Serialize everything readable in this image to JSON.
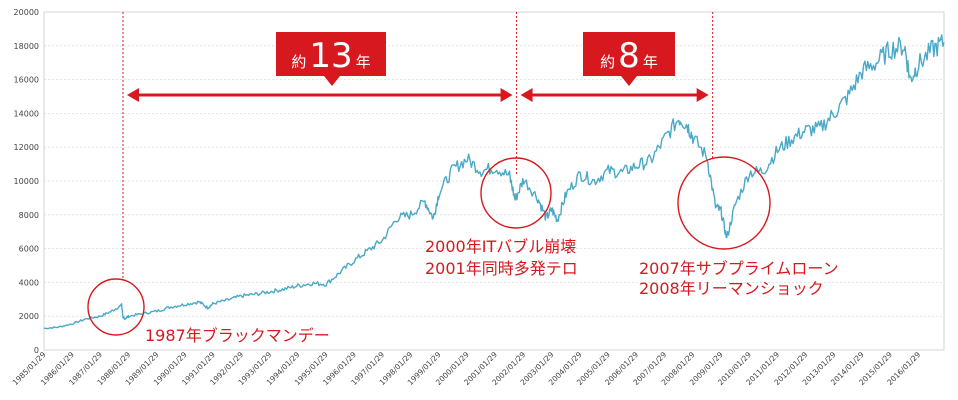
{
  "chart_data": {
    "type": "line",
    "title": "",
    "xlabel": "",
    "ylabel": "",
    "ylim": [
      0,
      20000
    ],
    "y_ticks": [
      0,
      2000,
      4000,
      6000,
      8000,
      10000,
      12000,
      14000,
      16000,
      18000,
      20000
    ],
    "y_tick_labels": [
      "0",
      "2000",
      "4000",
      "6000",
      "8000",
      "10000",
      "12000",
      "14000",
      "16000",
      "18000",
      "20000"
    ],
    "x_tick_labels": [
      "1985/01/29",
      "1986/01/29",
      "1987/01/29",
      "1988/01/29",
      "1989/01/29",
      "1990/01/29",
      "1991/01/29",
      "1992/01/29",
      "1993/01/29",
      "1994/01/29",
      "1995/01/29",
      "1996/01/29",
      "1997/01/29",
      "1998/01/29",
      "1999/01/29",
      "2000/01/29",
      "2001/01/29",
      "2002/01/29",
      "2003/01/29",
      "2004/01/29",
      "2005/01/29",
      "2006/01/29",
      "2007/01/29",
      "2008/01/29",
      "2009/01/29",
      "2010/01/29",
      "2011/01/29",
      "2012/01/29",
      "2013/01/29",
      "2014/01/29",
      "2015/01/29",
      "2016/01/29"
    ],
    "x_range": [
      1985.0,
      2016.9
    ],
    "grid": true,
    "series": [
      {
        "name": "",
        "color": "#4aa9c6",
        "x": [
          1985.0,
          1985.5,
          1986.0,
          1986.5,
          1987.0,
          1987.4,
          1987.75,
          1987.8,
          1987.85,
          1988.0,
          1988.5,
          1989.0,
          1989.5,
          1990.0,
          1990.5,
          1990.8,
          1991.0,
          1991.5,
          1992.0,
          1992.5,
          1993.0,
          1993.5,
          1994.0,
          1994.5,
          1995.0,
          1995.5,
          1996.0,
          1996.5,
          1997.0,
          1997.5,
          1998.0,
          1998.5,
          1998.8,
          1999.0,
          1999.5,
          2000.0,
          2000.5,
          2001.0,
          2001.5,
          2001.7,
          2002.0,
          2002.5,
          2002.8,
          2003.0,
          2003.2,
          2003.5,
          2004.0,
          2004.5,
          2005.0,
          2005.5,
          2006.0,
          2006.5,
          2007.0,
          2007.5,
          2007.8,
          2008.0,
          2008.5,
          2008.8,
          2009.0,
          2009.2,
          2009.5,
          2010.0,
          2010.5,
          2011.0,
          2011.5,
          2012.0,
          2012.5,
          2013.0,
          2013.5,
          2014.0,
          2014.5,
          2015.0,
          2015.5,
          2015.7,
          2016.0,
          2016.5,
          2016.9
        ],
        "values": [
          1280,
          1350,
          1550,
          1850,
          2000,
          2300,
          2650,
          1950,
          1850,
          2000,
          2150,
          2300,
          2550,
          2700,
          2850,
          2500,
          2750,
          2950,
          3200,
          3300,
          3450,
          3600,
          3800,
          3950,
          3900,
          4600,
          5300,
          5900,
          6500,
          7800,
          8000,
          8800,
          7800,
          9300,
          10700,
          11300,
          10600,
          10800,
          10300,
          8900,
          10100,
          9000,
          7800,
          8300,
          7700,
          9200,
          10400,
          10000,
          10600,
          10500,
          10900,
          11200,
          12500,
          13700,
          13300,
          12600,
          11400,
          8500,
          8200,
          6600,
          8600,
          10500,
          10600,
          11800,
          12500,
          13000,
          13100,
          14000,
          15000,
          16500,
          17000,
          17800,
          18000,
          16000,
          16900,
          17800,
          18200
        ]
      }
    ],
    "annotations": {
      "span1_badge_prefix": "約",
      "span1_badge_number": "13",
      "span1_badge_suffix": "年",
      "span2_badge_prefix": "約",
      "span2_badge_number": "8",
      "span2_badge_suffix": "年",
      "crash1987": "1987年ブラックマンデー",
      "crash2000_line1": "2000年ITバブル崩壊",
      "crash2000_line2": "2001年同時多発テロ",
      "crash2007_line1": "2007年サブプライムローン",
      "crash2007_line2": "2008年リーマンショック",
      "accent_color": "#d7191f"
    }
  }
}
